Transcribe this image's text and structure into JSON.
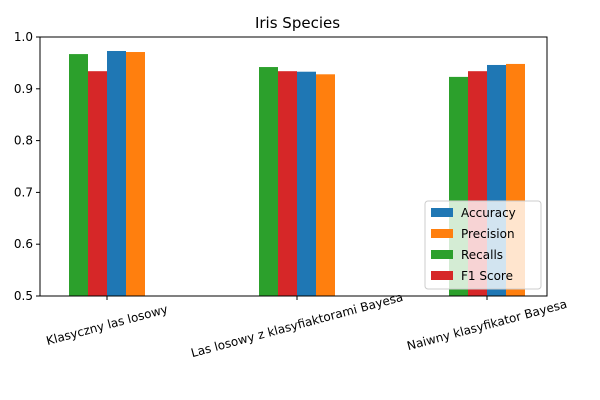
{
  "chart_data": {
    "type": "bar",
    "title": "Iris Species",
    "xlabel": "",
    "ylabel": "",
    "categories": [
      "Klasyczny las losowy",
      "Las losowy z klasyfiaktorami Bayesa",
      "Naiwny klasyfikator Bayesa"
    ],
    "ylim": [
      0.5,
      1.0
    ],
    "yticks": [
      "0.5",
      "0.6",
      "0.7",
      "0.8",
      "0.9",
      "1.0"
    ],
    "grid": false,
    "legend_position": "bottom-right",
    "series": [
      {
        "name": "Recalls",
        "color": "#2ca02c",
        "values": [
          0.967,
          0.942,
          0.923
        ]
      },
      {
        "name": "F1 Score",
        "color": "#d62728",
        "values": [
          0.934,
          0.934,
          0.934
        ]
      },
      {
        "name": "Accuracy",
        "color": "#1f77b4",
        "values": [
          0.973,
          0.933,
          0.946
        ]
      },
      {
        "name": "Precision",
        "color": "#ff7f0e",
        "values": [
          0.971,
          0.928,
          0.948
        ]
      }
    ],
    "legend_order": [
      "Accuracy",
      "Precision",
      "Recalls",
      "F1 Score"
    ]
  }
}
